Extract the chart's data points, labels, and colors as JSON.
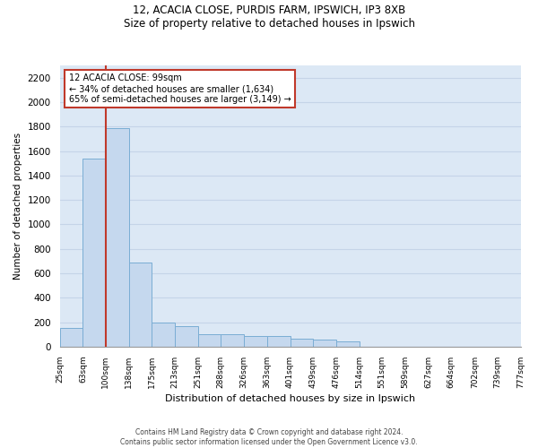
{
  "title_line1": "12, ACACIA CLOSE, PURDIS FARM, IPSWICH, IP3 8XB",
  "title_line2": "Size of property relative to detached houses in Ipswich",
  "xlabel": "Distribution of detached houses by size in Ipswich",
  "ylabel": "Number of detached properties",
  "footnote1": "Contains HM Land Registry data © Crown copyright and database right 2024.",
  "footnote2": "Contains public sector information licensed under the Open Government Licence v3.0.",
  "annotation_line1": "12 ACACIA CLOSE: 99sqm",
  "annotation_line2": "← 34% of detached houses are smaller (1,634)",
  "annotation_line3": "65% of semi-detached houses are larger (3,149) →",
  "vline_x": 100,
  "bar_color": "#c5d8ee",
  "bar_edge_color": "#7aadd4",
  "vline_color": "#c0392b",
  "annotation_box_edgecolor": "#c0392b",
  "background_color": "#dce8f5",
  "grid_color": "#c5d4e8",
  "categories": [
    "25sqm",
    "63sqm",
    "100sqm",
    "138sqm",
    "175sqm",
    "213sqm",
    "251sqm",
    "288sqm",
    "326sqm",
    "363sqm",
    "401sqm",
    "439sqm",
    "476sqm",
    "514sqm",
    "551sqm",
    "589sqm",
    "627sqm",
    "664sqm",
    "702sqm",
    "739sqm",
    "777sqm"
  ],
  "bar_lefts": [
    25,
    63,
    100,
    138,
    175,
    213,
    251,
    288,
    326,
    363,
    401,
    439,
    476,
    514,
    551,
    589,
    627,
    664,
    702,
    739
  ],
  "bar_widths": [
    38,
    37,
    38,
    37,
    38,
    38,
    37,
    38,
    37,
    38,
    38,
    37,
    38,
    37,
    38,
    38,
    37,
    38,
    37,
    38
  ],
  "bar_heights": [
    150,
    1540,
    1790,
    690,
    200,
    165,
    100,
    100,
    85,
    90,
    65,
    55,
    40,
    0,
    0,
    0,
    0,
    0,
    0,
    0
  ],
  "ylim": [
    0,
    2300
  ],
  "yticks": [
    0,
    200,
    400,
    600,
    800,
    1000,
    1200,
    1400,
    1600,
    1800,
    2000,
    2200
  ],
  "figwidth": 6.0,
  "figheight": 5.0,
  "dpi": 100
}
